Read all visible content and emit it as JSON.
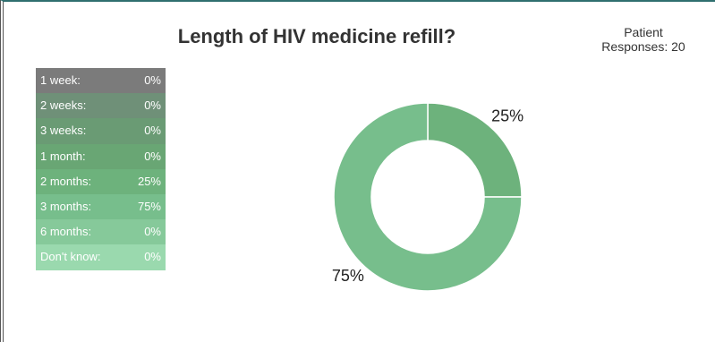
{
  "chart_data": {
    "type": "donut",
    "title": "Length of HIV medicine refill?",
    "responses_label": "Patient Responses: 20",
    "categories": [
      "1 week:",
      "2 weeks:",
      "3 weeks:",
      "1 month:",
      "2 months:",
      "3 months:",
      "6 months:",
      "Don't know:"
    ],
    "values": [
      0,
      0,
      0,
      0,
      25,
      75,
      0,
      0
    ],
    "value_labels": [
      "0%",
      "0%",
      "0%",
      "0%",
      "25%",
      "75%",
      "0%",
      "0%"
    ],
    "colors": [
      "#7b7b7b",
      "#6f9078",
      "#6a9b74",
      "#69a674",
      "#6db27c",
      "#77be8c",
      "#86c99a",
      "#9ad9ae"
    ]
  }
}
